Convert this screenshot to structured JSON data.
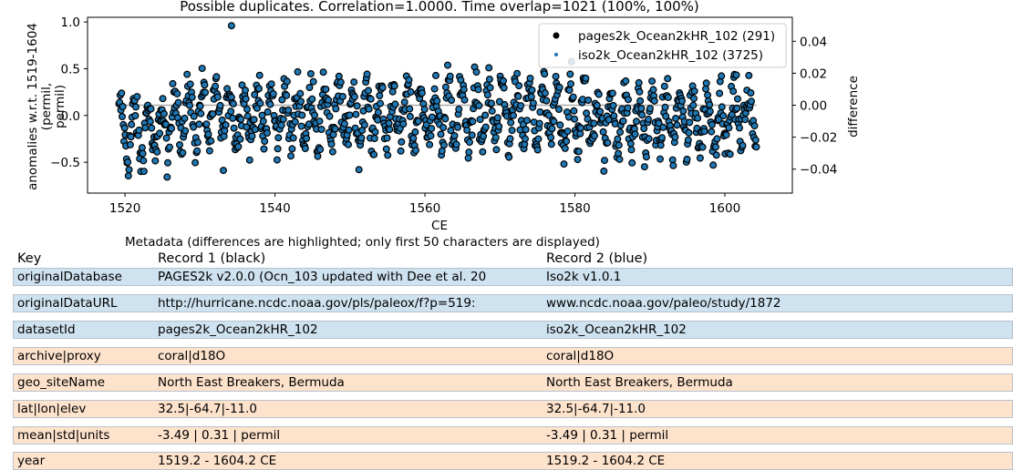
{
  "chart_data": {
    "type": "scatter",
    "title": "Possible duplicates. Correlation=1.0000. Time overlap=1021 (100%, 100%)",
    "xlabel": "CE",
    "ylabel": "anomalies w.r.t. 1519-1604\n(permil,\npermil)",
    "ylabel_right": "difference",
    "xlim": [
      1515,
      1609
    ],
    "ylim": [
      -0.83,
      1.05
    ],
    "ylim_right": [
      -0.055,
      0.055
    ],
    "xticks": [
      1520,
      1540,
      1560,
      1580,
      1600
    ],
    "yticks": [
      -0.5,
      0.0,
      0.5,
      1.0
    ],
    "yticks_right": [
      -0.04,
      -0.02,
      0.0,
      0.02,
      0.04
    ],
    "ytick_labels": [
      "−0.5",
      "0.0",
      "0.5",
      "1.0"
    ],
    "yticks_right_labels": [
      "−0.04",
      "−0.02",
      "0.00",
      "0.02",
      "0.04"
    ],
    "x_start": 1519.2,
    "x_end": 1604.2,
    "n_points": 1021,
    "legend_position": "upper right",
    "series": [
      {
        "name": "pages2k_Ocean2kHR_102 (291)",
        "color": "#000000",
        "marker": "circle"
      },
      {
        "name": "iso2k_Ocean2kHR_102 (3725)",
        "color": "#1f77b4",
        "marker": "circle"
      },
      {
        "name": "difference",
        "color": "#aaaaaa",
        "marker": "line"
      }
    ],
    "difference_value": 0.0
  },
  "metadata": {
    "caption": "Metadata (differences are highlighted; only first 50 characters are displayed)",
    "headers": [
      "Key",
      "Record 1 (black)",
      "Record 2 (blue)"
    ],
    "rows": [
      {
        "key": "originalDatabase",
        "r1": "PAGES2k v2.0.0 (Ocn_103 updated with Dee et al. 20",
        "r2": "Iso2k v1.0.1",
        "differs": true
      },
      {
        "key": "originalDataURL",
        "r1": "http://hurricane.ncdc.noaa.gov/pls/paleox/f?p=519:",
        "r2": "www.ncdc.noaa.gov/paleo/study/1872",
        "differs": true
      },
      {
        "key": "datasetId",
        "r1": "pages2k_Ocean2kHR_102",
        "r2": "iso2k_Ocean2kHR_102",
        "differs": true
      },
      {
        "key": "archive|proxy",
        "r1": "coral|d18O",
        "r2": "coral|d18O",
        "differs": false
      },
      {
        "key": "geo_siteName",
        "r1": "North East Breakers, Bermuda",
        "r2": "North East Breakers, Bermuda",
        "differs": false
      },
      {
        "key": "lat|lon|elev",
        "r1": "32.5|-64.7|-11.0",
        "r2": "32.5|-64.7|-11.0",
        "differs": false
      },
      {
        "key": "mean|std|units",
        "r1": "-3.49 | 0.31 | permil",
        "r2": "-3.49 | 0.31 | permil",
        "differs": false
      },
      {
        "key": "year",
        "r1": "1519.2 - 1604.2 CE",
        "r2": "1519.2 - 1604.2 CE",
        "differs": false
      }
    ]
  }
}
